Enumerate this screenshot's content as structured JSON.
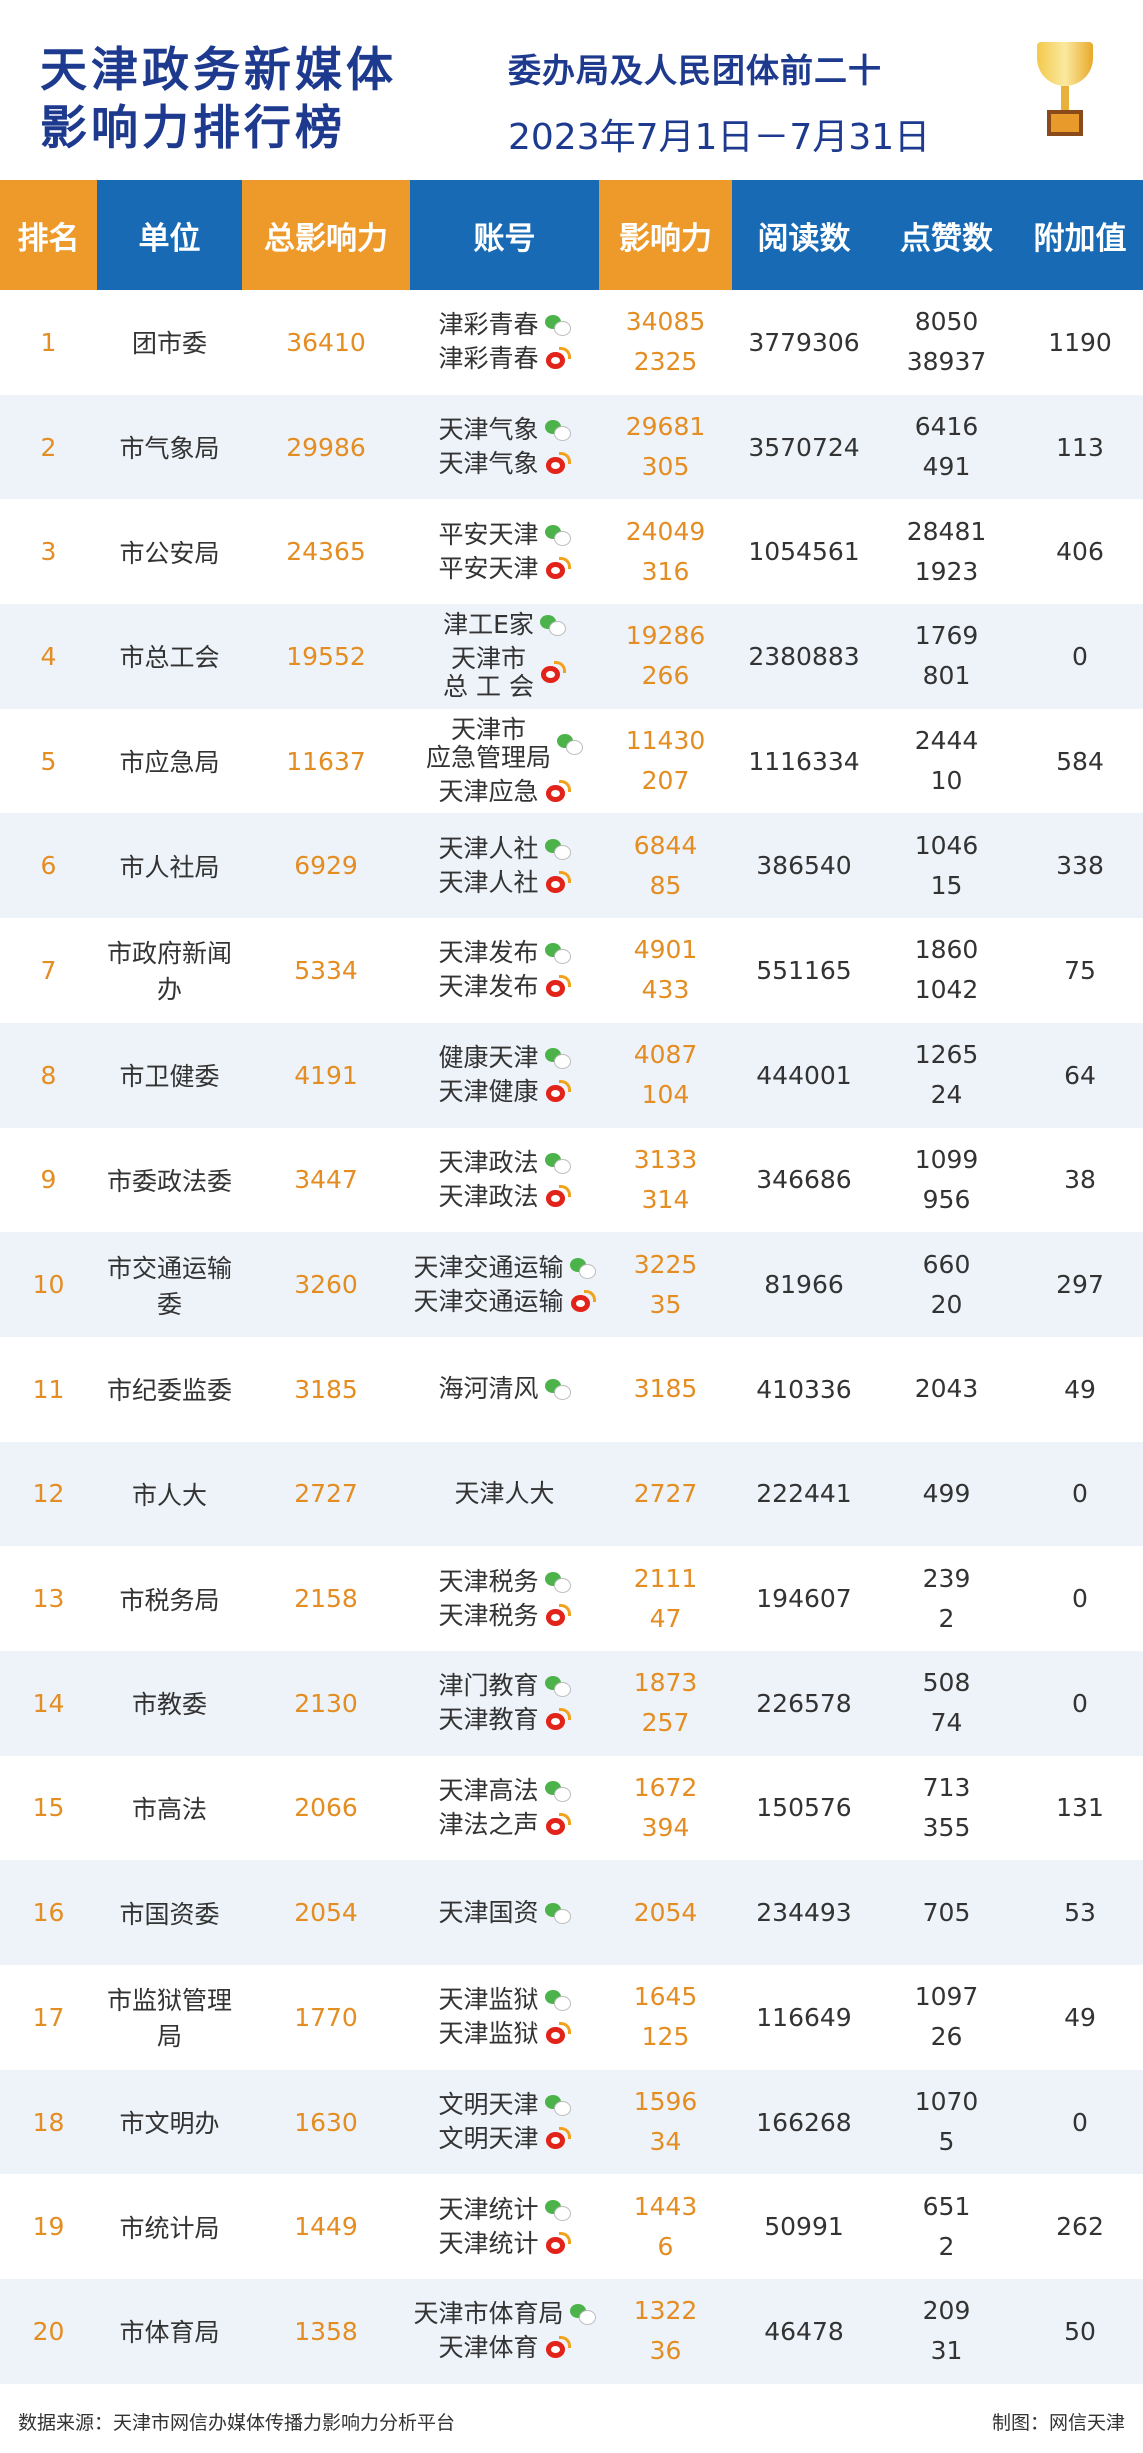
{
  "title": [
    "天津政务新媒体",
    "影响力排行榜"
  ],
  "subtitle": "委办局及人民团体前二十",
  "date_range": "2023年7月1日－7月31日",
  "headers": [
    "排名",
    "单位",
    "总影响力",
    "账号",
    "影响力",
    "阅读数",
    "点赞数",
    "附加值"
  ],
  "colors": {
    "orange": "#ee9a2b",
    "blue": "#176ab3",
    "title": "#1d3a8f"
  },
  "rows": [
    {
      "rank": "1",
      "unit": "团市委",
      "total": "36410",
      "accounts": [
        {
          "name": "津彩青春",
          "icon": "wechat",
          "value": "34085"
        },
        {
          "name": "津彩青春",
          "icon": "weibo",
          "value": "2325"
        }
      ],
      "reads": "3779306",
      "likes": [
        "8050",
        "38937"
      ],
      "extra": "1190"
    },
    {
      "rank": "2",
      "unit": "市气象局",
      "total": "29986",
      "accounts": [
        {
          "name": "天津气象",
          "icon": "wechat",
          "value": "29681"
        },
        {
          "name": "天津气象",
          "icon": "weibo",
          "value": "305"
        }
      ],
      "reads": "3570724",
      "likes": [
        "6416",
        "491"
      ],
      "extra": "113"
    },
    {
      "rank": "3",
      "unit": "市公安局",
      "total": "24365",
      "accounts": [
        {
          "name": "平安天津",
          "icon": "wechat",
          "value": "24049"
        },
        {
          "name": "平安天津",
          "icon": "weibo",
          "value": "316"
        }
      ],
      "reads": "1054561",
      "likes": [
        "28481",
        "1923"
      ],
      "extra": "406"
    },
    {
      "rank": "4",
      "unit": "市总工会",
      "total": "19552",
      "accounts": [
        {
          "name": "津工E家",
          "icon": "wechat",
          "value": "19286"
        },
        {
          "name": "天津市\n总 工 会",
          "icon": "weibo",
          "value": "266"
        }
      ],
      "reads": "2380883",
      "likes": [
        "1769",
        "801"
      ],
      "extra": "0"
    },
    {
      "rank": "5",
      "unit": "市应急局",
      "total": "11637",
      "accounts": [
        {
          "name": "天津市\n应急管理局",
          "icon": "wechat",
          "value": "11430"
        },
        {
          "name": "天津应急",
          "icon": "weibo",
          "value": "207"
        }
      ],
      "reads": "1116334",
      "likes": [
        "2444",
        "10"
      ],
      "extra": "584"
    },
    {
      "rank": "6",
      "unit": "市人社局",
      "total": "6929",
      "accounts": [
        {
          "name": "天津人社",
          "icon": "wechat",
          "value": "6844"
        },
        {
          "name": "天津人社",
          "icon": "weibo",
          "value": "85"
        }
      ],
      "reads": "386540",
      "likes": [
        "1046",
        "15"
      ],
      "extra": "338"
    },
    {
      "rank": "7",
      "unit": "市政府新闻办",
      "total": "5334",
      "accounts": [
        {
          "name": "天津发布",
          "icon": "wechat",
          "value": "4901"
        },
        {
          "name": "天津发布",
          "icon": "weibo",
          "value": "433"
        }
      ],
      "reads": "551165",
      "likes": [
        "1860",
        "1042"
      ],
      "extra": "75"
    },
    {
      "rank": "8",
      "unit": "市卫健委",
      "total": "4191",
      "accounts": [
        {
          "name": "健康天津",
          "icon": "wechat",
          "value": "4087"
        },
        {
          "name": "天津健康",
          "icon": "weibo",
          "value": "104"
        }
      ],
      "reads": "444001",
      "likes": [
        "1265",
        "24"
      ],
      "extra": "64"
    },
    {
      "rank": "9",
      "unit": "市委政法委",
      "total": "3447",
      "accounts": [
        {
          "name": "天津政法",
          "icon": "wechat",
          "value": "3133"
        },
        {
          "name": "天津政法",
          "icon": "weibo",
          "value": "314"
        }
      ],
      "reads": "346686",
      "likes": [
        "1099",
        "956"
      ],
      "extra": "38"
    },
    {
      "rank": "10",
      "unit": "市交通运输委",
      "total": "3260",
      "accounts": [
        {
          "name": "天津交通运输",
          "icon": "wechat",
          "value": "3225"
        },
        {
          "name": "天津交通运输",
          "icon": "weibo",
          "value": "35"
        }
      ],
      "reads": "81966",
      "likes": [
        "660",
        "20"
      ],
      "extra": "297"
    },
    {
      "rank": "11",
      "unit": "市纪委监委",
      "total": "3185",
      "accounts": [
        {
          "name": "海河清风",
          "icon": "wechat",
          "value": "3185"
        }
      ],
      "reads": "410336",
      "likes": [
        "2043"
      ],
      "extra": "49"
    },
    {
      "rank": "12",
      "unit": "市人大",
      "total": "2727",
      "accounts": [
        {
          "name": "天津人大",
          "icon": "",
          "value": "2727"
        }
      ],
      "reads": "222441",
      "likes": [
        "499"
      ],
      "extra": "0"
    },
    {
      "rank": "13",
      "unit": "市税务局",
      "total": "2158",
      "accounts": [
        {
          "name": "天津税务",
          "icon": "wechat",
          "value": "2111"
        },
        {
          "name": "天津税务",
          "icon": "weibo",
          "value": "47"
        }
      ],
      "reads": "194607",
      "likes": [
        "239",
        "2"
      ],
      "extra": "0"
    },
    {
      "rank": "14",
      "unit": "市教委",
      "total": "2130",
      "accounts": [
        {
          "name": "津门教育",
          "icon": "wechat",
          "value": "1873"
        },
        {
          "name": "天津教育",
          "icon": "weibo",
          "value": "257"
        }
      ],
      "reads": "226578",
      "likes": [
        "508",
        "74"
      ],
      "extra": "0"
    },
    {
      "rank": "15",
      "unit": "市高法",
      "total": "2066",
      "accounts": [
        {
          "name": "天津高法",
          "icon": "wechat",
          "value": "1672"
        },
        {
          "name": "津法之声",
          "icon": "weibo",
          "value": "394"
        }
      ],
      "reads": "150576",
      "likes": [
        "713",
        "355"
      ],
      "extra": "131"
    },
    {
      "rank": "16",
      "unit": "市国资委",
      "total": "2054",
      "accounts": [
        {
          "name": "天津国资",
          "icon": "wechat",
          "value": "2054"
        }
      ],
      "reads": "234493",
      "likes": [
        "705"
      ],
      "extra": "53"
    },
    {
      "rank": "17",
      "unit": "市监狱管理局",
      "total": "1770",
      "accounts": [
        {
          "name": "天津监狱",
          "icon": "wechat",
          "value": "1645"
        },
        {
          "name": "天津监狱",
          "icon": "weibo",
          "value": "125"
        }
      ],
      "reads": "116649",
      "likes": [
        "1097",
        "26"
      ],
      "extra": "49"
    },
    {
      "rank": "18",
      "unit": "市文明办",
      "total": "1630",
      "accounts": [
        {
          "name": "文明天津",
          "icon": "wechat",
          "value": "1596"
        },
        {
          "name": "文明天津",
          "icon": "weibo",
          "value": "34"
        }
      ],
      "reads": "166268",
      "likes": [
        "1070",
        "5"
      ],
      "extra": "0"
    },
    {
      "rank": "19",
      "unit": "市统计局",
      "total": "1449",
      "accounts": [
        {
          "name": "天津统计",
          "icon": "wechat",
          "value": "1443"
        },
        {
          "name": "天津统计",
          "icon": "weibo",
          "value": "6"
        }
      ],
      "reads": "50991",
      "likes": [
        "651",
        "2"
      ],
      "extra": "262"
    },
    {
      "rank": "20",
      "unit": "市体育局",
      "total": "1358",
      "accounts": [
        {
          "name": "天津市体育局",
          "icon": "wechat",
          "value": "1322"
        },
        {
          "name": "天津体育",
          "icon": "weibo",
          "value": "36"
        }
      ],
      "reads": "46478",
      "likes": [
        "209",
        "31"
      ],
      "extra": "50"
    }
  ],
  "footer": {
    "source": "数据来源：天津市网信办媒体传播力影响力分析平台",
    "credit": "制图：网信天津"
  }
}
